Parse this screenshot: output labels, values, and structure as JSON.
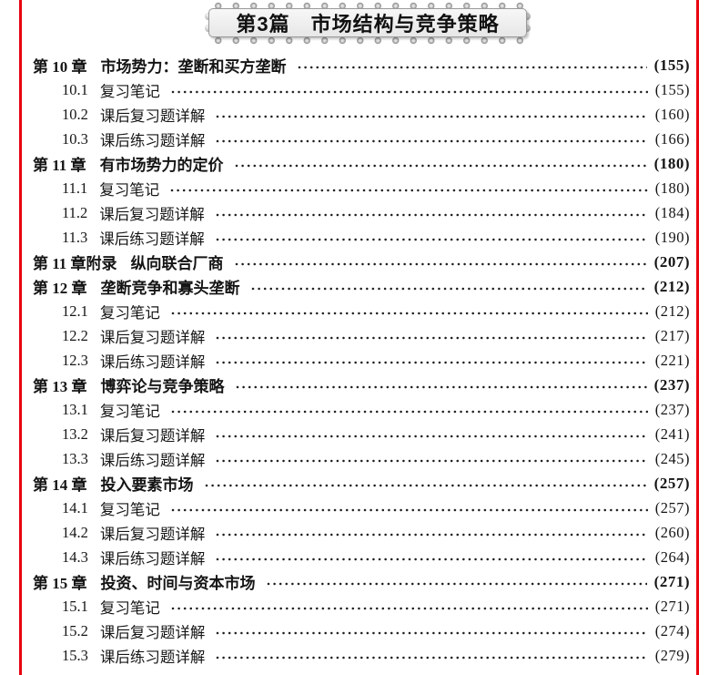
{
  "banner": {
    "title": "第3篇　市场结构与竞争策略"
  },
  "colors": {
    "edge_red": "#e8000f",
    "banner_bg": "#efefef",
    "text": "#151515"
  },
  "toc": {
    "rows": [
      {
        "type": "chapter",
        "num": "第 10 章",
        "title": "市场势力：垄断和买方垄断",
        "page": "(155)"
      },
      {
        "type": "sub",
        "num": "10.1",
        "title": "复习笔记",
        "page": "(155)"
      },
      {
        "type": "sub",
        "num": "10.2",
        "title": "课后复习题详解",
        "page": "(160)"
      },
      {
        "type": "sub",
        "num": "10.3",
        "title": "课后练习题详解",
        "page": "(166)"
      },
      {
        "type": "chapter",
        "num": "第 11 章",
        "title": "有市场势力的定价",
        "page": "(180)"
      },
      {
        "type": "sub",
        "num": "11.1",
        "title": "复习笔记",
        "page": "(180)"
      },
      {
        "type": "sub",
        "num": "11.2",
        "title": "课后复习题详解",
        "page": "(184)"
      },
      {
        "type": "sub",
        "num": "11.3",
        "title": "课后练习题详解",
        "page": "(190)"
      },
      {
        "type": "chapter",
        "num": "第 11 章附录",
        "title": "纵向联合厂商",
        "page": "(207)"
      },
      {
        "type": "chapter",
        "num": "第 12 章",
        "title": "垄断竞争和寡头垄断",
        "page": "(212)"
      },
      {
        "type": "sub",
        "num": "12.1",
        "title": "复习笔记",
        "page": "(212)"
      },
      {
        "type": "sub",
        "num": "12.2",
        "title": "课后复习题详解",
        "page": "(217)"
      },
      {
        "type": "sub",
        "num": "12.3",
        "title": "课后练习题详解",
        "page": "(221)"
      },
      {
        "type": "chapter",
        "num": "第 13 章",
        "title": "博弈论与竞争策略",
        "page": "(237)"
      },
      {
        "type": "sub",
        "num": "13.1",
        "title": "复习笔记",
        "page": "(237)"
      },
      {
        "type": "sub",
        "num": "13.2",
        "title": "课后复习题详解",
        "page": "(241)"
      },
      {
        "type": "sub",
        "num": "13.3",
        "title": "课后练习题详解",
        "page": "(245)"
      },
      {
        "type": "chapter",
        "num": "第 14 章",
        "title": "投入要素市场",
        "page": "(257)"
      },
      {
        "type": "sub",
        "num": "14.1",
        "title": "复习笔记",
        "page": "(257)"
      },
      {
        "type": "sub",
        "num": "14.2",
        "title": "课后复习题详解",
        "page": "(260)"
      },
      {
        "type": "sub",
        "num": "14.3",
        "title": "课后练习题详解",
        "page": "(264)"
      },
      {
        "type": "chapter",
        "num": "第 15 章",
        "title": "投资、时间与资本市场",
        "page": "(271)"
      },
      {
        "type": "sub",
        "num": "15.1",
        "title": "复习笔记",
        "page": "(271)"
      },
      {
        "type": "sub",
        "num": "15.2",
        "title": "课后复习题详解",
        "page": "(274)"
      },
      {
        "type": "sub",
        "num": "15.3",
        "title": "课后练习题详解",
        "page": "(279)"
      }
    ]
  }
}
